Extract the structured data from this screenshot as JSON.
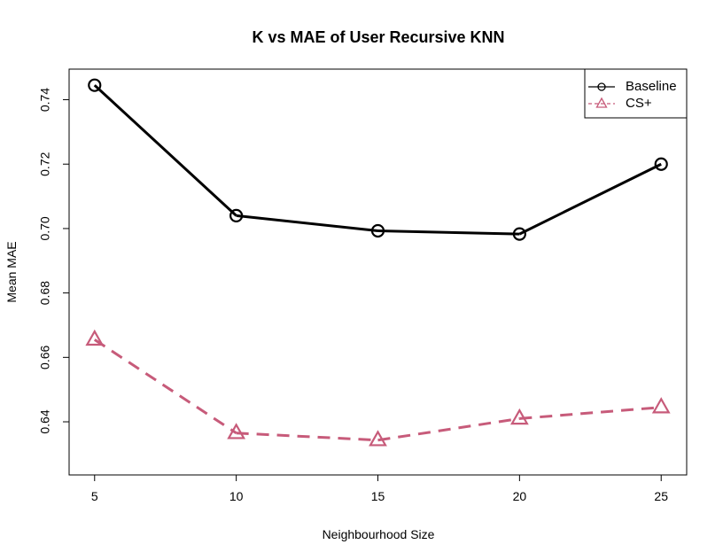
{
  "chart_data": {
    "type": "line",
    "title": "K vs MAE of User Recursive KNN",
    "xlabel": "Neighbourhood Size",
    "ylabel": "Mean MAE",
    "x": [
      5,
      10,
      15,
      20,
      25
    ],
    "xticks": [
      "5",
      "10",
      "15",
      "20",
      "25"
    ],
    "yticks": [
      "0.64",
      "0.66",
      "0.68",
      "0.70",
      "0.72",
      "0.74"
    ],
    "xlim": [
      4.1,
      25.9
    ],
    "ylim": [
      0.6235,
      0.7495
    ],
    "grid": false,
    "legend_position": "top-right",
    "series": [
      {
        "name": "Baseline",
        "values": [
          0.7445,
          0.704,
          0.6993,
          0.6983,
          0.72
        ],
        "color": "#000000",
        "line_style": "solid",
        "marker": "circle"
      },
      {
        "name": "CS+",
        "values": [
          0.6655,
          0.6365,
          0.6343,
          0.641,
          0.6445
        ],
        "color": "#C75B7A",
        "line_style": "dashed",
        "marker": "triangle"
      }
    ]
  }
}
